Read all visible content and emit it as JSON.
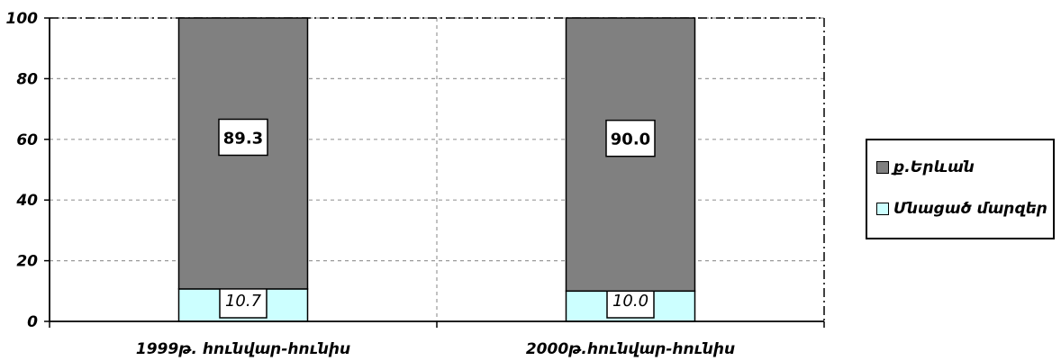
{
  "chart_data": {
    "type": "bar",
    "stacked": true,
    "categories": [
      "1999թ. հունվար-հունիս",
      "2000թ.հունվար-հունիս"
    ],
    "series": [
      {
        "name": "Մնացած մարզեր",
        "values": [
          10.7,
          10.0
        ],
        "color": "#ccffff"
      },
      {
        "name": "ք.Երևան",
        "values": [
          89.3,
          90.0
        ],
        "color": "#808080"
      }
    ],
    "ylim": [
      0,
      100
    ],
    "yticks": [
      "0",
      "20",
      "40",
      "60",
      "80",
      "100"
    ],
    "data_labels": {
      "series_0": [
        "10.7",
        "10.0"
      ],
      "series_1": [
        "89.3",
        "90.0"
      ]
    },
    "grid": true,
    "legend": "right",
    "legend_order": [
      1,
      0
    ]
  }
}
